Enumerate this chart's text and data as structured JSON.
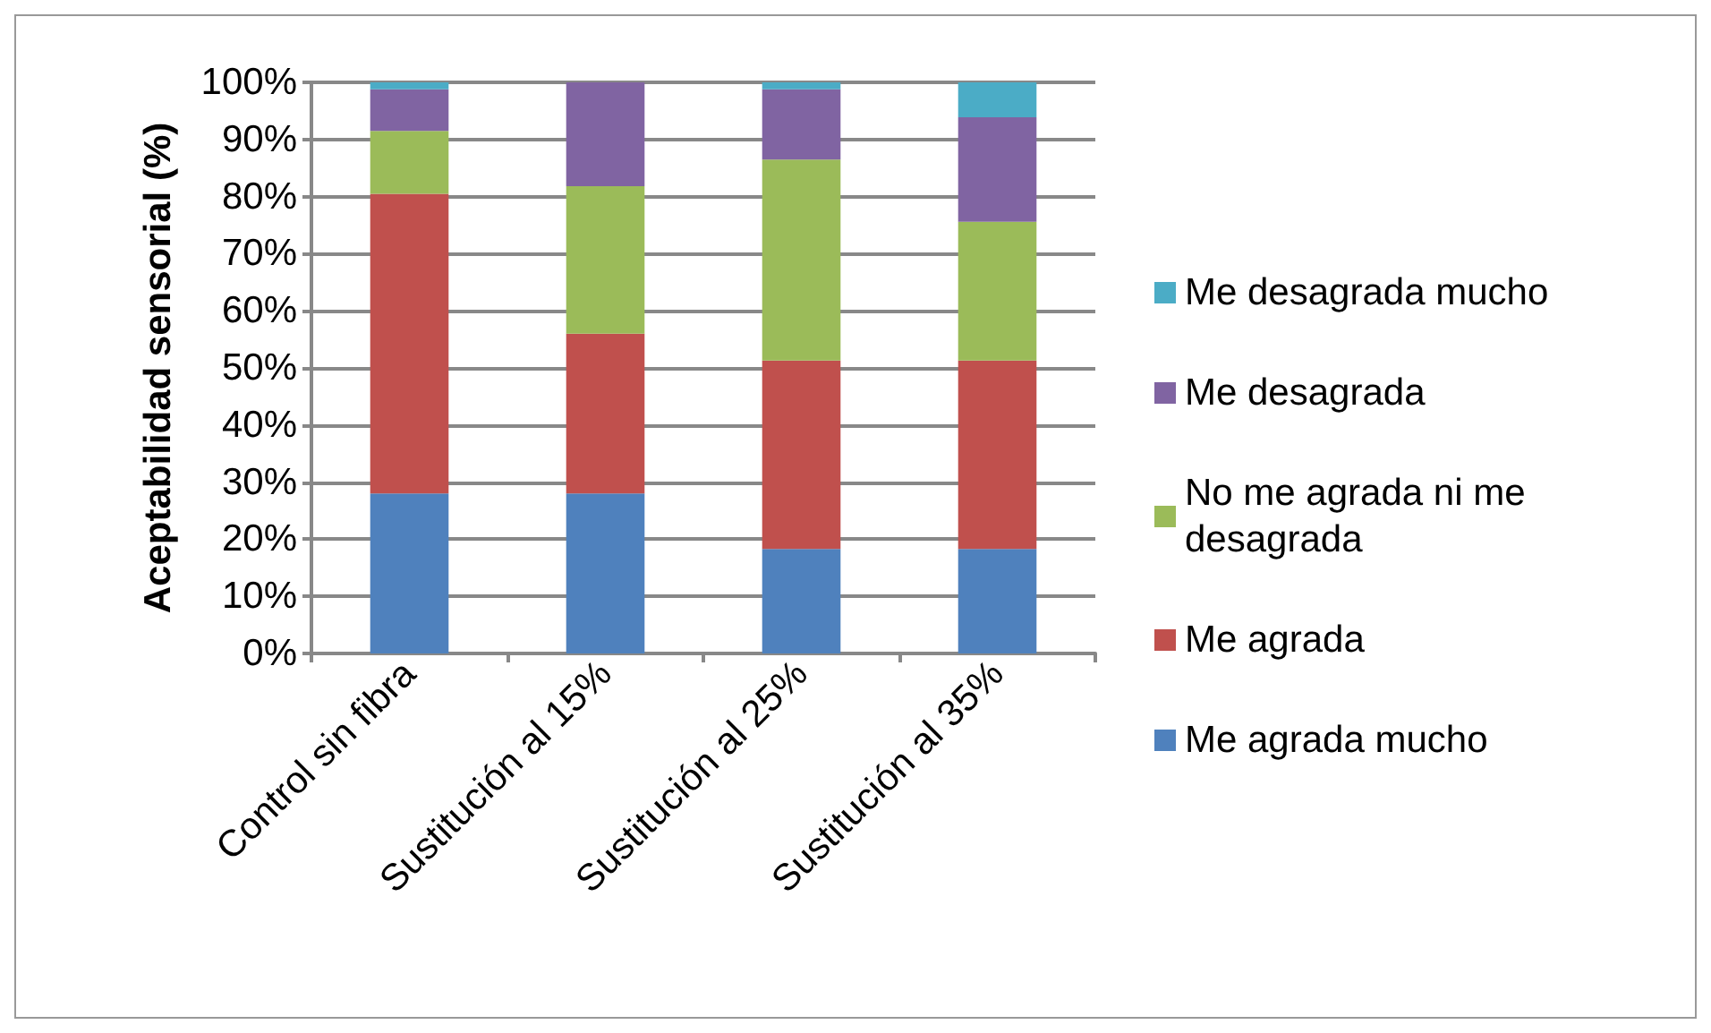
{
  "chart_data": {
    "type": "bar",
    "stacked": true,
    "ylabel": "Aceptabilidad sensorial (%)",
    "categories": [
      "Control sin fibra",
      "Sustitución al 15%",
      "Sustitución al 25%",
      "Sustitución al 35%"
    ],
    "series": [
      {
        "name": "Me agrada mucho",
        "color": "#4f81bd",
        "values": [
          28,
          28,
          18.3,
          18.3
        ]
      },
      {
        "name": "Me agrada",
        "color": "#c0504d",
        "values": [
          52.5,
          28,
          33,
          33
        ]
      },
      {
        "name": "No me agrada ni me desagrada",
        "color": "#9bbb59",
        "values": [
          11,
          25.8,
          35.2,
          24.3
        ]
      },
      {
        "name": "Me desagrada",
        "color": "#8064a2",
        "values": [
          7.3,
          18.2,
          12.3,
          18.3
        ]
      },
      {
        "name": "Me desagrada mucho",
        "color": "#4bacc6",
        "values": [
          1.2,
          0,
          1.2,
          6.1
        ]
      }
    ],
    "ylim": [
      0,
      100
    ],
    "yticks": [
      {
        "value": 0,
        "label": "0%"
      },
      {
        "value": 10,
        "label": "10%"
      },
      {
        "value": 20,
        "label": "20%"
      },
      {
        "value": 30,
        "label": "30%"
      },
      {
        "value": 40,
        "label": "40%"
      },
      {
        "value": 50,
        "label": "50%"
      },
      {
        "value": 60,
        "label": "60%"
      },
      {
        "value": 70,
        "label": "70%"
      },
      {
        "value": 80,
        "label": "80%"
      },
      {
        "value": 90,
        "label": "90%"
      },
      {
        "value": 100,
        "label": "100%"
      }
    ],
    "grid": "y",
    "legend": "right"
  }
}
